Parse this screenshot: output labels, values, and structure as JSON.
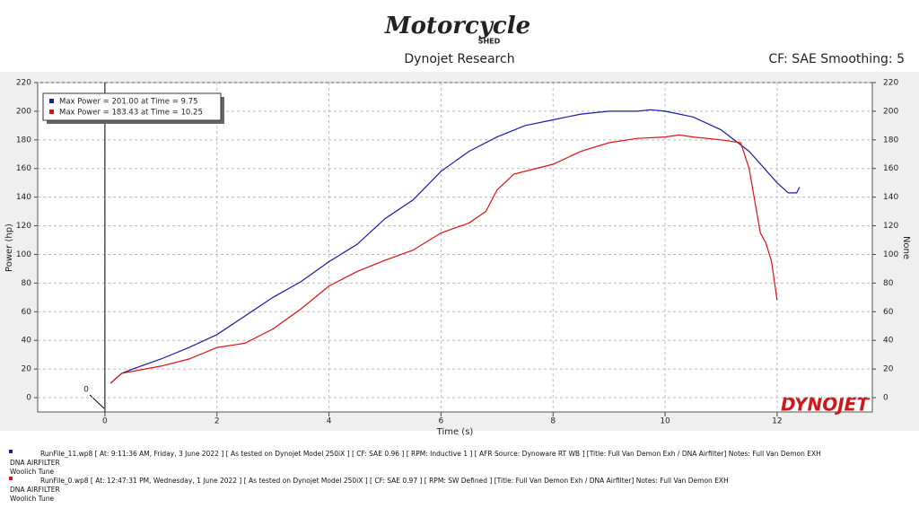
{
  "chart_data": {
    "type": "line",
    "logo": "Motorcycle",
    "logo_sub": "SHED",
    "title": "Dynojet Research",
    "subtitle": "CF: SAE Smoothing: 5",
    "brand": "DYNOJET",
    "x_label": "Time (s)",
    "y_label": "Power (hp)",
    "y2_label": "None",
    "annotation": "0",
    "xlim": [
      -1.2,
      13.7
    ],
    "xticks": [
      0,
      2,
      4,
      6,
      8,
      10,
      12
    ],
    "ylim": [
      -10,
      220
    ],
    "yticks": [
      0,
      20,
      40,
      60,
      80,
      100,
      120,
      140,
      160,
      180,
      200,
      220
    ],
    "y2lim": [
      -10,
      220
    ],
    "y2ticks": [
      0,
      20,
      40,
      60,
      80,
      100,
      120,
      140,
      160,
      180,
      200,
      220
    ],
    "grid": true,
    "legend": "upper left",
    "series": [
      {
        "name": "Max Power = 201.00 at Time = 9.75",
        "color": "#1a1aa6",
        "x": [
          0.1,
          0.3,
          0.5,
          1,
          1.5,
          2,
          2.5,
          3,
          3.5,
          4,
          4.5,
          5,
          5.5,
          6,
          6.5,
          7,
          7.5,
          8,
          8.5,
          9,
          9.5,
          9.75,
          10,
          10.5,
          11,
          11.5,
          12,
          12.2,
          12.35,
          12.4
        ],
        "values": [
          10,
          17,
          20,
          27,
          35,
          44,
          57,
          70,
          81,
          95,
          107,
          125,
          138,
          158,
          172,
          182,
          190,
          194,
          198,
          200,
          200,
          201,
          200,
          196,
          187,
          172,
          150,
          143,
          143,
          147
        ]
      },
      {
        "name": "Max Power = 183.43 at Time = 10.25",
        "color": "#e01010",
        "x": [
          0.1,
          0.3,
          1,
          1.5,
          2,
          2.5,
          3,
          3.5,
          4,
          4.5,
          5,
          5.5,
          6,
          6.5,
          6.8,
          7,
          7.3,
          8,
          8.5,
          9,
          9.5,
          10,
          10.25,
          10.5,
          11,
          11.35,
          11.5,
          11.7,
          11.8,
          11.9,
          12
        ],
        "values": [
          10,
          17,
          22,
          27,
          35,
          38,
          48,
          62,
          78,
          88,
          96,
          103,
          115,
          122,
          130,
          145,
          156,
          163,
          172,
          178,
          181,
          182,
          183.43,
          182,
          180,
          178,
          160,
          115,
          108,
          95,
          68
        ]
      }
    ],
    "runs": [
      {
        "color": "#1a1aa6",
        "lines": [
          "RunFile_11.wp8  [ At:  9:11:36 AM, Friday, 3 June 2022 ]  [ As tested on Dynojet Model 250iX ]  [ CF: SAE 0.96 ]  [ RPM: Inductive 1 ]  [ AFR Source: Dynoware RT WB ]  [Title: Full Van Demon Exh / DNA Airfilter]   Notes: Full Van Demon EXH",
          "DNA AIRFILTER",
          "Woolich Tune"
        ]
      },
      {
        "color": "#e01010",
        "lines": [
          "RunFile_0.wp8  [ At:  12:47:31 PM, Wednesday, 1 June 2022 ]  [ As tested on Dynojet Model 250iX ]  [ CF: SAE 0.97 ]  [ RPM: SW Defined ]  [Title: Full Van Demon Exh / DNA Airfilter]   Notes: Full Van Demon EXH",
          "DNA AIRFILTER",
          "Woolich Tune"
        ]
      }
    ]
  }
}
